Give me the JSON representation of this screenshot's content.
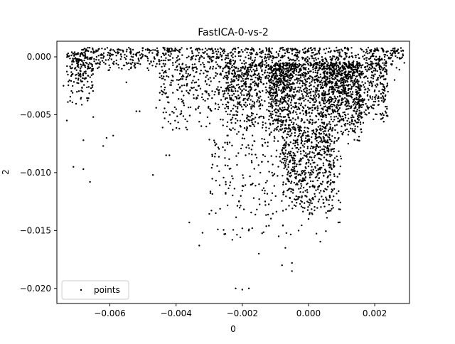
{
  "chart_data": {
    "type": "scatter",
    "title": "FastICA-0-vs-2",
    "xlabel": "0",
    "ylabel": "2",
    "xlim": [
      -0.0076,
      0.00305
    ],
    "ylim": [
      -0.0213,
      0.00135
    ],
    "x_ticks": [
      -0.006,
      -0.004,
      -0.002,
      0.0,
      0.002
    ],
    "x_tick_labels": [
      "−0.006",
      "−0.004",
      "−0.002",
      "0.000",
      "0.002"
    ],
    "y_ticks": [
      0.0,
      -0.005,
      -0.01,
      -0.015,
      -0.02
    ],
    "y_tick_labels": [
      "0.000",
      "−0.005",
      "−0.010",
      "−0.015",
      "−0.020"
    ],
    "grid": false,
    "legend": {
      "placement": "lower-left",
      "entries": [
        "points"
      ]
    },
    "series": [
      {
        "name": "points",
        "color": "#000000",
        "points": [
          [
            -0.00715,
            0.0004
          ],
          [
            -0.0071,
            0.0003
          ],
          [
            -0.007,
            -0.0004
          ],
          [
            -0.0069,
            -0.0012
          ],
          [
            -0.0068,
            0.0001
          ],
          [
            -0.0066,
            -0.0002
          ],
          [
            -0.0064,
            0.0
          ],
          [
            -0.0062,
            -0.0001
          ],
          [
            -0.0058,
            -0.0003
          ],
          [
            -0.0055,
            -0.0005
          ],
          [
            -0.0052,
            0.0002
          ],
          [
            -0.0048,
            -0.0006
          ],
          [
            -0.0045,
            -0.0004
          ],
          [
            -0.0041,
            -0.0001
          ],
          [
            -0.0037,
            -0.0007
          ],
          [
            -0.0033,
            -0.0002
          ],
          [
            -0.0029,
            0.0003
          ],
          [
            -0.0025,
            -0.0005
          ],
          [
            -0.0021,
            0.0004
          ],
          [
            -0.0017,
            -0.0003
          ],
          [
            -0.0013,
            0.0002
          ],
          [
            -0.0009,
            -0.0004
          ],
          [
            -0.0005,
            0.0006
          ],
          [
            -0.0001,
            -0.0002
          ],
          [
            0.0003,
            0.0005
          ],
          [
            0.0007,
            -0.0003
          ],
          [
            0.0011,
            0.0008
          ],
          [
            0.0015,
            0.0002
          ],
          [
            0.0019,
            0.0006
          ],
          [
            0.0023,
            0.0
          ],
          [
            0.0028,
            0.0005
          ],
          [
            -0.0074,
            -0.0025
          ],
          [
            -0.0072,
            -0.0038
          ],
          [
            -0.0073,
            -0.0055
          ],
          [
            -0.0068,
            -0.0072
          ],
          [
            -0.0065,
            -0.0052
          ],
          [
            -0.0062,
            -0.0077
          ],
          [
            -0.0059,
            -0.0068
          ],
          [
            -0.0055,
            -0.0022
          ],
          [
            -0.0051,
            -0.0047
          ],
          [
            -0.0047,
            -0.0102
          ],
          [
            -0.0043,
            -0.0085
          ],
          [
            -0.0039,
            -0.0062
          ],
          [
            -0.0036,
            -0.0143
          ],
          [
            -0.0032,
            -0.0152
          ],
          [
            -0.0028,
            -0.0135
          ],
          [
            -0.0025,
            -0.0108
          ],
          [
            -0.0023,
            -0.0158
          ],
          [
            -0.0021,
            -0.0125
          ],
          [
            -0.0019,
            -0.0085
          ],
          [
            -0.0017,
            -0.0148
          ],
          [
            -0.0015,
            -0.017
          ],
          [
            -0.0013,
            -0.0128
          ],
          [
            -0.0011,
            -0.01
          ],
          [
            -0.0009,
            -0.0155
          ],
          [
            -0.0007,
            -0.0165
          ],
          [
            -0.0005,
            -0.0185
          ],
          [
            -0.0003,
            -0.015
          ],
          [
            -0.0001,
            -0.012
          ],
          [
            0.0001,
            -0.0135
          ],
          [
            0.0002,
            -0.0095
          ],
          [
            0.0004,
            -0.011
          ],
          [
            0.0006,
            -0.008
          ],
          [
            0.0008,
            -0.007
          ],
          [
            0.001,
            -0.006
          ],
          [
            0.0012,
            -0.0075
          ],
          [
            0.0014,
            -0.0055
          ],
          [
            0.0016,
            -0.0065
          ],
          [
            0.0018,
            -0.0045
          ],
          [
            0.002,
            -0.0035
          ],
          [
            0.0022,
            -0.005
          ],
          [
            0.0024,
            -0.003
          ],
          [
            0.0026,
            -0.002
          ],
          [
            -0.0022,
            -0.02
          ],
          [
            -0.002,
            -0.0201
          ],
          [
            -0.0018,
            -0.02
          ],
          [
            -0.0042,
            -0.0085
          ],
          [
            -0.0061,
            -0.007
          ],
          [
            -0.0068,
            -0.0097
          ],
          [
            -0.0071,
            -0.0095
          ],
          [
            -0.0066,
            -0.0108
          ],
          [
            -0.0052,
            -0.0047
          ],
          [
            -0.0046,
            -0.0044
          ],
          [
            -0.0041,
            -0.0063
          ],
          [
            -0.0037,
            -0.0061
          ],
          [
            -0.0033,
            -0.0163
          ],
          [
            -0.0008,
            -0.018
          ],
          [
            -0.0005,
            -0.0178
          ],
          [
            0.0,
            -0.014
          ],
          [
            0.0003,
            -0.0125
          ],
          [
            0.0005,
            -0.01
          ]
        ]
      }
    ],
    "dense_regions": [
      {
        "x": [
          -0.0071,
          0.0029
        ],
        "y": [
          -0.0012,
          0.0008
        ],
        "count": 900
      },
      {
        "x": [
          -0.0012,
          0.0016
        ],
        "y": [
          -0.0075,
          -0.0005
        ],
        "count": 1200
      },
      {
        "x": [
          -0.0025,
          -0.0005
        ],
        "y": [
          -0.007,
          -0.0005
        ],
        "count": 500
      },
      {
        "x": [
          0.0004,
          0.0024
        ],
        "y": [
          -0.006,
          -0.0005
        ],
        "count": 500
      },
      {
        "x": [
          -0.0008,
          0.0008
        ],
        "y": [
          -0.014,
          -0.006
        ],
        "count": 500
      },
      {
        "x": [
          -0.0073,
          -0.0065
        ],
        "y": [
          -0.0045,
          0.0004
        ],
        "count": 160
      },
      {
        "x": [
          -0.0045,
          -0.0015
        ],
        "y": [
          -0.0065,
          -0.0008
        ],
        "count": 350
      },
      {
        "x": [
          -0.003,
          0.001
        ],
        "y": [
          -0.016,
          -0.007
        ],
        "count": 260
      }
    ]
  }
}
